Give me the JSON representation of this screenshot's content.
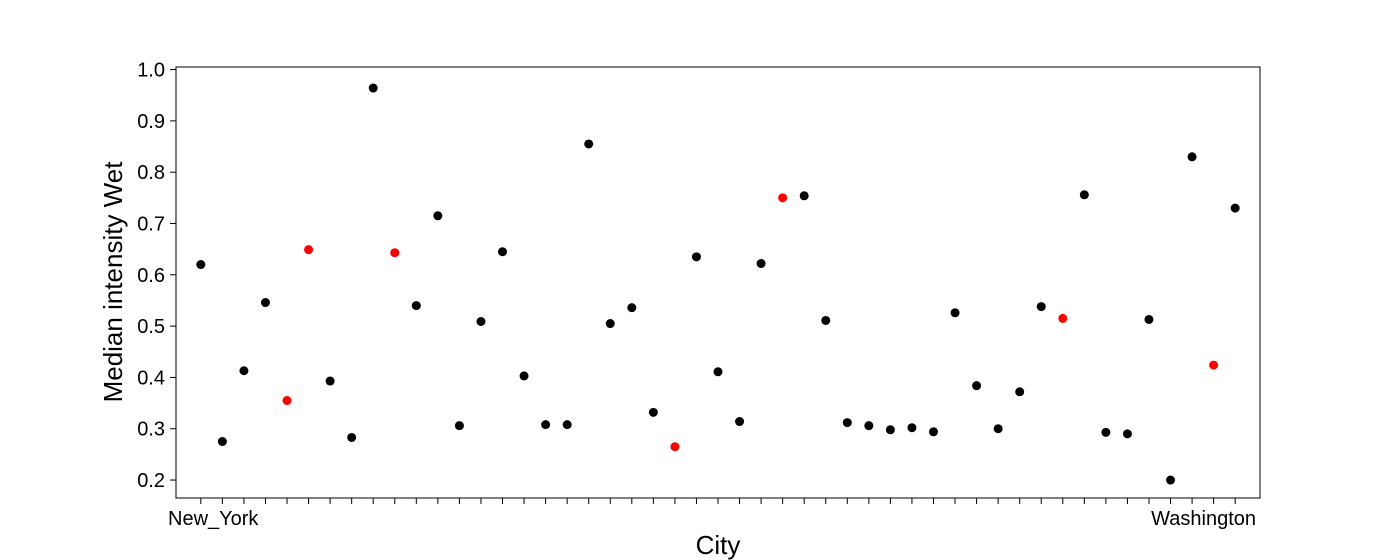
{
  "chart_data": {
    "type": "scatter",
    "title": "",
    "xlabel": "City",
    "ylabel": "Median intensity Wet",
    "ylim": [
      0.165,
      1.005
    ],
    "yticks": [
      0.2,
      0.3,
      0.4,
      0.5,
      0.6,
      0.7,
      0.8,
      0.9,
      1.0
    ],
    "ytick_labels": [
      "0.2",
      "0.3",
      "0.4",
      "0.5",
      "0.6",
      "0.7",
      "0.8",
      "0.9",
      "1.0"
    ],
    "grid": false,
    "legend": "none",
    "colors": {
      "default": "#000000",
      "highlight": "#ff0000"
    },
    "first_category": "New_York",
    "last_category": "Washington",
    "points": [
      {
        "x": 1,
        "y": 0.62,
        "highlight": false
      },
      {
        "x": 2,
        "y": 0.275,
        "highlight": false
      },
      {
        "x": 3,
        "y": 0.413,
        "highlight": false
      },
      {
        "x": 4,
        "y": 0.546,
        "highlight": false
      },
      {
        "x": 5,
        "y": 0.355,
        "highlight": true
      },
      {
        "x": 6,
        "y": 0.649,
        "highlight": true
      },
      {
        "x": 7,
        "y": 0.393,
        "highlight": false
      },
      {
        "x": 8,
        "y": 0.283,
        "highlight": false
      },
      {
        "x": 9,
        "y": 0.964,
        "highlight": false
      },
      {
        "x": 10,
        "y": 0.643,
        "highlight": true
      },
      {
        "x": 11,
        "y": 0.54,
        "highlight": false
      },
      {
        "x": 12,
        "y": 0.715,
        "highlight": false
      },
      {
        "x": 13,
        "y": 0.306,
        "highlight": false
      },
      {
        "x": 14,
        "y": 0.509,
        "highlight": false
      },
      {
        "x": 15,
        "y": 0.645,
        "highlight": false
      },
      {
        "x": 16,
        "y": 0.403,
        "highlight": false
      },
      {
        "x": 17,
        "y": 0.308,
        "highlight": false
      },
      {
        "x": 18,
        "y": 0.308,
        "highlight": false
      },
      {
        "x": 19,
        "y": 0.855,
        "highlight": false
      },
      {
        "x": 20,
        "y": 0.505,
        "highlight": false
      },
      {
        "x": 21,
        "y": 0.536,
        "highlight": false
      },
      {
        "x": 22,
        "y": 0.332,
        "highlight": false
      },
      {
        "x": 23,
        "y": 0.265,
        "highlight": true
      },
      {
        "x": 24,
        "y": 0.635,
        "highlight": false
      },
      {
        "x": 25,
        "y": 0.411,
        "highlight": false
      },
      {
        "x": 26,
        "y": 0.314,
        "highlight": false
      },
      {
        "x": 27,
        "y": 0.622,
        "highlight": false
      },
      {
        "x": 28,
        "y": 0.75,
        "highlight": true
      },
      {
        "x": 29,
        "y": 0.754,
        "highlight": false
      },
      {
        "x": 30,
        "y": 0.511,
        "highlight": false
      },
      {
        "x": 31,
        "y": 0.312,
        "highlight": false
      },
      {
        "x": 32,
        "y": 0.306,
        "highlight": false
      },
      {
        "x": 33,
        "y": 0.298,
        "highlight": false
      },
      {
        "x": 34,
        "y": 0.302,
        "highlight": false
      },
      {
        "x": 35,
        "y": 0.294,
        "highlight": false
      },
      {
        "x": 36,
        "y": 0.526,
        "highlight": false
      },
      {
        "x": 37,
        "y": 0.384,
        "highlight": false
      },
      {
        "x": 38,
        "y": 0.3,
        "highlight": false
      },
      {
        "x": 39,
        "y": 0.372,
        "highlight": false
      },
      {
        "x": 40,
        "y": 0.538,
        "highlight": false
      },
      {
        "x": 41,
        "y": 0.515,
        "highlight": true
      },
      {
        "x": 42,
        "y": 0.756,
        "highlight": false
      },
      {
        "x": 43,
        "y": 0.293,
        "highlight": false
      },
      {
        "x": 44,
        "y": 0.29,
        "highlight": false
      },
      {
        "x": 45,
        "y": 0.513,
        "highlight": false
      },
      {
        "x": 46,
        "y": 0.2,
        "highlight": false
      },
      {
        "x": 47,
        "y": 0.83,
        "highlight": false
      },
      {
        "x": 48,
        "y": 0.424,
        "highlight": true
      },
      {
        "x": 49,
        "y": 0.73,
        "highlight": false
      }
    ]
  }
}
